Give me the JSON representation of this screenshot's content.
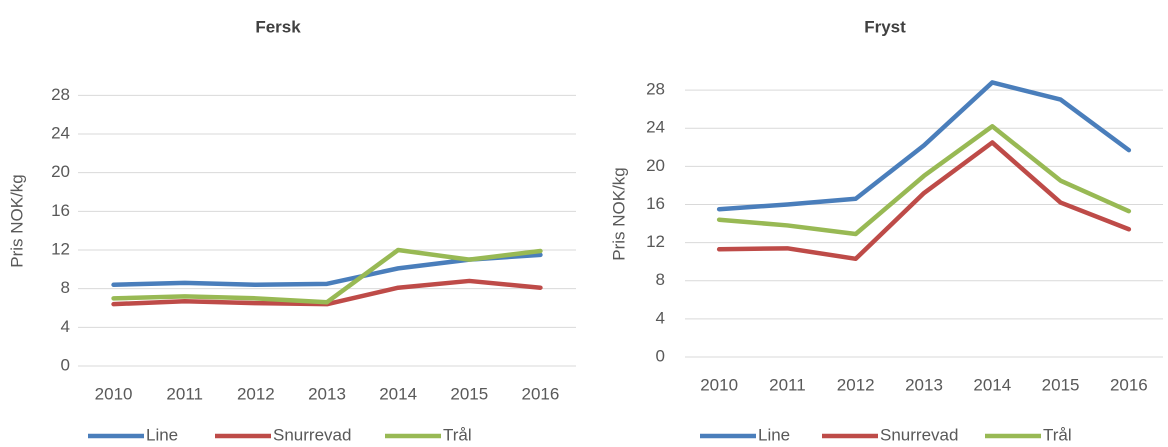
{
  "chart_data": [
    {
      "type": "line",
      "title": "Fersk",
      "y_label": "Pris NOK/kg",
      "categories": [
        "2010",
        "2011",
        "2012",
        "2013",
        "2014",
        "2015",
        "2016"
      ],
      "ylim": [
        0,
        30
      ],
      "yticks": [
        0,
        4,
        8,
        12,
        16,
        20,
        24,
        28
      ],
      "grid": true,
      "legend": "bottom",
      "series": [
        {
          "name": "Line",
          "color": "#4a7ebb",
          "values": [
            8.4,
            8.6,
            8.4,
            8.5,
            10.1,
            11.0,
            11.5
          ]
        },
        {
          "name": "Snurrevad",
          "color": "#be4b48",
          "values": [
            6.4,
            6.7,
            6.5,
            6.4,
            8.1,
            8.8,
            8.1
          ]
        },
        {
          "name": "Trål",
          "color": "#98b954",
          "values": [
            7.0,
            7.2,
            7.0,
            6.6,
            12.0,
            11.0,
            11.9
          ]
        }
      ]
    },
    {
      "type": "line",
      "title": "Fryst",
      "y_label": "Pris NOK/kg",
      "categories": [
        "2010",
        "2011",
        "2012",
        "2013",
        "2014",
        "2015",
        "2016"
      ],
      "ylim": [
        0,
        30
      ],
      "yticks": [
        0,
        4,
        8,
        12,
        16,
        20,
        24,
        28
      ],
      "grid": true,
      "legend": "bottom",
      "series": [
        {
          "name": "Line",
          "color": "#4a7ebb",
          "values": [
            15.5,
            16.0,
            16.6,
            22.2,
            28.8,
            27.0,
            21.7
          ]
        },
        {
          "name": "Snurrevad",
          "color": "#be4b48",
          "values": [
            11.3,
            11.4,
            10.3,
            17.2,
            22.5,
            16.2,
            13.4
          ]
        },
        {
          "name": "Trål",
          "color": "#98b954",
          "values": [
            14.4,
            13.8,
            12.9,
            19.0,
            24.2,
            18.5,
            15.3
          ]
        }
      ]
    }
  ]
}
